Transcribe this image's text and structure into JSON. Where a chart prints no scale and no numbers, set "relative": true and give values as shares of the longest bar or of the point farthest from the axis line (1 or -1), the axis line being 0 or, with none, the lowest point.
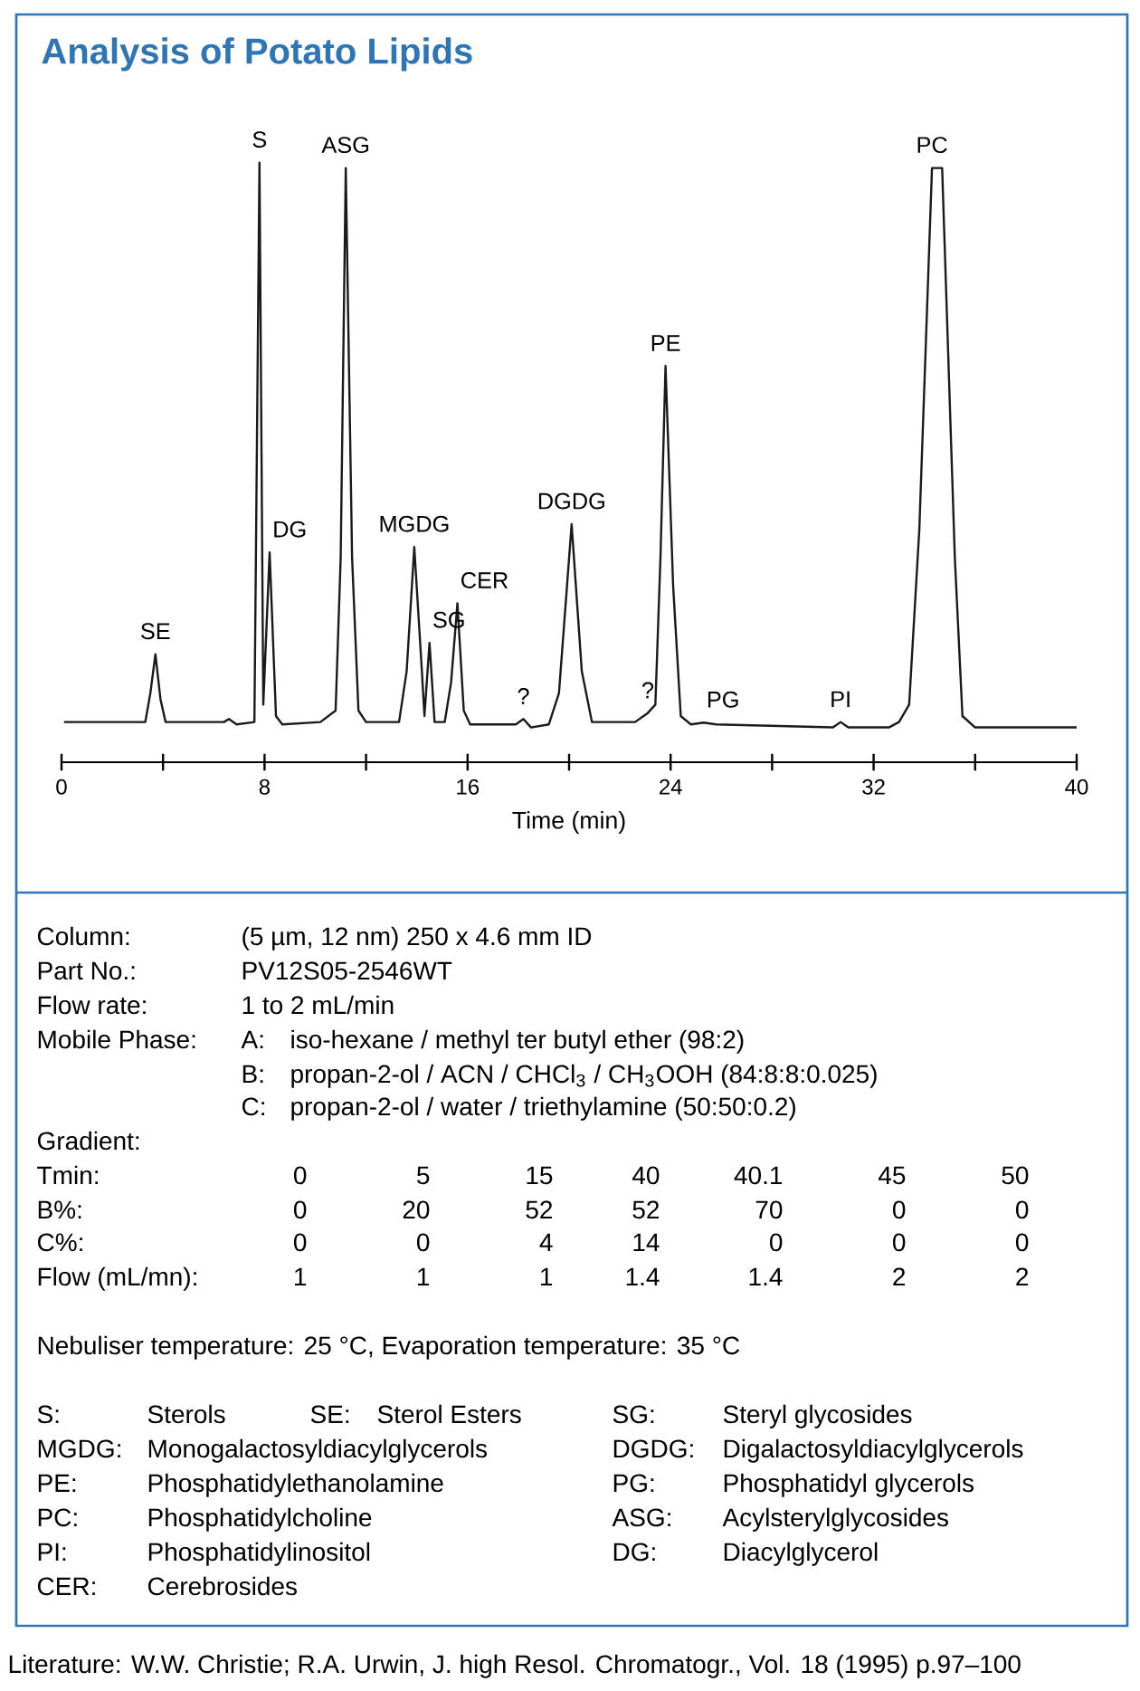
{
  "chart_data": {
    "type": "line",
    "title": "Analysis of Potato Lipids",
    "xlabel": "Time (min)",
    "relative": true,
    "xlim": [
      0,
      40
    ],
    "xticks": [
      0,
      {
        "value": 4,
        "label": null
      },
      8,
      {
        "value": 12,
        "label": null
      },
      16,
      {
        "value": 20,
        "label": null
      },
      24,
      {
        "value": 28,
        "label": null
      },
      32,
      {
        "value": 36,
        "label": null
      },
      40
    ],
    "x": [
      0.1,
      3.3,
      3.5,
      3.7,
      3.9,
      4.1,
      6.4,
      6.6,
      6.9,
      7.6,
      7.8,
      7.95,
      8.2,
      8.45,
      8.7,
      10.2,
      10.8,
      11.0,
      11.2,
      11.45,
      11.7,
      12.0,
      13.3,
      13.6,
      13.9,
      14.2,
      14.3,
      14.5,
      14.7,
      15.1,
      15.35,
      15.6,
      15.85,
      16.1,
      17.9,
      18.2,
      18.5,
      19.2,
      19.6,
      20.1,
      20.5,
      20.9,
      22.6,
      23.1,
      23.4,
      23.6,
      23.8,
      24.1,
      24.4,
      24.8,
      25.3,
      25.8,
      30.4,
      30.7,
      31.0,
      32.6,
      33.0,
      33.4,
      33.8,
      34.3,
      34.7,
      35.2,
      35.5,
      36.0,
      40.0
    ],
    "series": [
      {
        "color": "#1a1a1a",
        "values": [
          0.067,
          0.067,
          0.115,
          0.18,
          0.105,
          0.067,
          0.067,
          0.072,
          0.063,
          0.067,
          1.0,
          0.096,
          0.35,
          0.077,
          0.063,
          0.067,
          0.086,
          0.341,
          0.991,
          0.341,
          0.086,
          0.067,
          0.067,
          0.152,
          0.359,
          0.152,
          0.077,
          0.199,
          0.067,
          0.067,
          0.133,
          0.265,
          0.086,
          0.063,
          0.063,
          0.072,
          0.058,
          0.063,
          0.115,
          0.397,
          0.152,
          0.067,
          0.067,
          0.082,
          0.096,
          0.341,
          0.661,
          0.294,
          0.077,
          0.063,
          0.066,
          0.063,
          0.058,
          0.067,
          0.058,
          0.058,
          0.067,
          0.096,
          0.388,
          0.991,
          0.991,
          0.341,
          0.077,
          0.058,
          0.058
        ]
      }
    ],
    "annotations": [
      {
        "text": "SE",
        "x": 3.7,
        "y": 0.18
      },
      {
        "text": "S",
        "x": 7.8,
        "y": 1.0
      },
      {
        "text": "DG",
        "x": 8.2,
        "y": 0.35
      },
      {
        "text": "ASG",
        "x": 11.2,
        "y": 0.991
      },
      {
        "text": "MGDG",
        "x": 13.9,
        "y": 0.359
      },
      {
        "text": "SG",
        "x": 14.5,
        "y": 0.199
      },
      {
        "text": "CER",
        "x": 15.6,
        "y": 0.265
      },
      {
        "text": "?",
        "x": 18.2,
        "y": 0.072
      },
      {
        "text": "DGDG",
        "x": 20.1,
        "y": 0.397
      },
      {
        "text": "?",
        "x": 23.1,
        "y": 0.082
      },
      {
        "text": "PE",
        "x": 23.8,
        "y": 0.661
      },
      {
        "text": "PG",
        "x": 25.3,
        "y": 0.066
      },
      {
        "text": "PI",
        "x": 30.7,
        "y": 0.067
      },
      {
        "text": "PC",
        "x": 34.3,
        "y": 0.991
      },
      "Column:",
      "(5 µm, 12 nm) 250 x 4.6 mm ID",
      "Part No.:",
      "PV12S05-2546WT",
      "Flow rate:",
      "1 to 2 mL/min",
      "Mobile Phase:",
      "A:",
      "iso-hexane / methyl ter butyl ether (98:2)",
      "B:",
      "propan-2-ol / ACN / CHCl$_{3}$ / CH$_{3}$OOH (84:8:8:0.025)",
      "C:",
      "propan-2-ol / water / triethylamine (50:50:0.2)",
      "Gradient:",
      "Tmin:",
      "0",
      "5",
      "15",
      "40",
      "40.1",
      "45",
      "50",
      "B%:",
      "0",
      "20",
      "52",
      "52",
      "70",
      "0",
      "0",
      "C%:",
      "0",
      "0",
      "4",
      "14",
      "0",
      "0",
      "0",
      "Flow (mL/mn):",
      "1",
      "1",
      "1",
      "1.4",
      "1.4",
      "2",
      "2",
      "Nebuliser temperature: 25 °C, Evaporation temperature: 35 °C",
      "S:",
      "Sterols",
      "SE:",
      "Sterol Esters",
      "SG:",
      "Steryl glycosides",
      "MGDG:",
      "Monogalactosyldiacylglycerols",
      "DGDG:",
      "Digalactosyldiacylglycerols",
      "PE:",
      "Phosphatidylethanolamine",
      "PG:",
      "Phosphatidyl glycerols",
      "PC:",
      "Phosphatidylcholine",
      "ASG:",
      "Acylsterylglycosides",
      "PI:",
      "Phosphatidylinositol",
      "DG:",
      "Diacylglycerol",
      "CER:",
      "Cerebrosides",
      "Literature: W.W. Christie; R.A. Urwin, J. high Resol. Chromatogr., Vol. 18 (1995) p.97–100"
    ]
  }
}
